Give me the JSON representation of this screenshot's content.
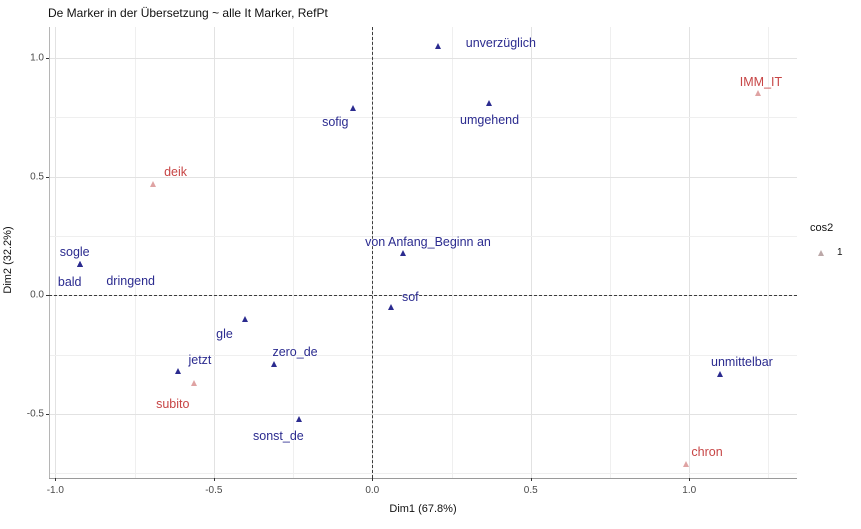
{
  "title": "De Marker in der Übersetzung ~ alle It Marker, RefPt",
  "chart_data": {
    "type": "scatter",
    "title": "De Marker in der Übersetzung ~ alle It Marker, RefPt",
    "xlabel": "Dim1 (67.8%)",
    "ylabel": "Dim2 (32.2%)",
    "xlim": [
      -1.02,
      1.34
    ],
    "ylim": [
      -0.77,
      1.13
    ],
    "grid": {
      "minor_step": 0.25,
      "major_step": 0.5,
      "major_color": "#e2e2e2",
      "minor_color": "#efefef"
    },
    "x_ticks": [
      {
        "v": -1.0,
        "label": "-1.0"
      },
      {
        "v": -0.5,
        "label": "-0.5"
      },
      {
        "v": 0.0,
        "label": "0.0"
      },
      {
        "v": 0.5,
        "label": "0.5"
      },
      {
        "v": 1.0,
        "label": "1.0"
      }
    ],
    "y_ticks": [
      {
        "v": 1.0,
        "label": "1.0"
      },
      {
        "v": 0.5,
        "label": "0.5"
      },
      {
        "v": 0.0,
        "label": "0.0"
      },
      {
        "v": -0.5,
        "label": "-0.5"
      }
    ],
    "reference_lines": [
      {
        "axis": "x",
        "value": 0,
        "style": "dashed"
      },
      {
        "axis": "y",
        "value": 0,
        "style": "dashed"
      }
    ],
    "legend": {
      "title": "cos2",
      "position": "right",
      "entries": [
        {
          "label": "1",
          "marker": "triangle-icon",
          "color": "#BCA8A8"
        }
      ]
    },
    "series": [
      {
        "name": "de-marker",
        "text_color": "#2B2B8F",
        "marker_color": "#2B2B8F",
        "points": [
          {
            "label": "unverzüglich",
            "x": 0.21,
            "y": 1.05,
            "dx": 62,
            "dy": -3
          },
          {
            "label": "sofig",
            "x": -0.06,
            "y": 0.79,
            "dx": -18,
            "dy": 14
          },
          {
            "label": "umgehend",
            "x": 0.37,
            "y": 0.81,
            "dx": 0,
            "dy": 17
          },
          {
            "label": "von Anfang_Beginn an",
            "x": 0.1,
            "y": 0.18,
            "dx": 24,
            "dy": -11
          },
          {
            "label": "sogle",
            "x": -0.92,
            "y": 0.13,
            "dx": -6,
            "dy": -12
          },
          {
            "label": "bald",
            "x": -0.92,
            "y": 0.13,
            "dx": -11,
            "dy": 18
          },
          {
            "label": "dringend",
            "x": -0.92,
            "y": 0.13,
            "dx": 50,
            "dy": 17
          },
          {
            "label": "sof",
            "x": 0.06,
            "y": -0.05,
            "dx": 19,
            "dy": -10
          },
          {
            "label": "gle",
            "x": -0.4,
            "y": -0.1,
            "dx": -21,
            "dy": 15
          },
          {
            "label": "zero_de",
            "x": -0.31,
            "y": -0.29,
            "dx": 21,
            "dy": -12
          },
          {
            "label": "jetzt",
            "x": -0.61,
            "y": -0.32,
            "dx": 21,
            "dy": -11
          },
          {
            "label": "sonst_de",
            "x": -0.23,
            "y": -0.52,
            "dx": -21,
            "dy": 17
          },
          {
            "label": "unmittelbar",
            "x": 1.1,
            "y": -0.33,
            "dx": 21,
            "dy": -12
          }
        ]
      },
      {
        "name": "it-marker-refpt",
        "text_color": "#C74545",
        "marker_color": "#DFA3A3",
        "points": [
          {
            "label": "IMM_IT",
            "x": 1.22,
            "y": 0.85,
            "dx": 2,
            "dy": -11
          },
          {
            "label": "deik",
            "x": -0.69,
            "y": 0.47,
            "dx": 22,
            "dy": -12
          },
          {
            "label": "subito",
            "x": -0.56,
            "y": -0.37,
            "dx": -22,
            "dy": 21
          },
          {
            "label": "chron",
            "x": 0.99,
            "y": -0.71,
            "dx": 21,
            "dy": -12
          }
        ]
      }
    ]
  }
}
